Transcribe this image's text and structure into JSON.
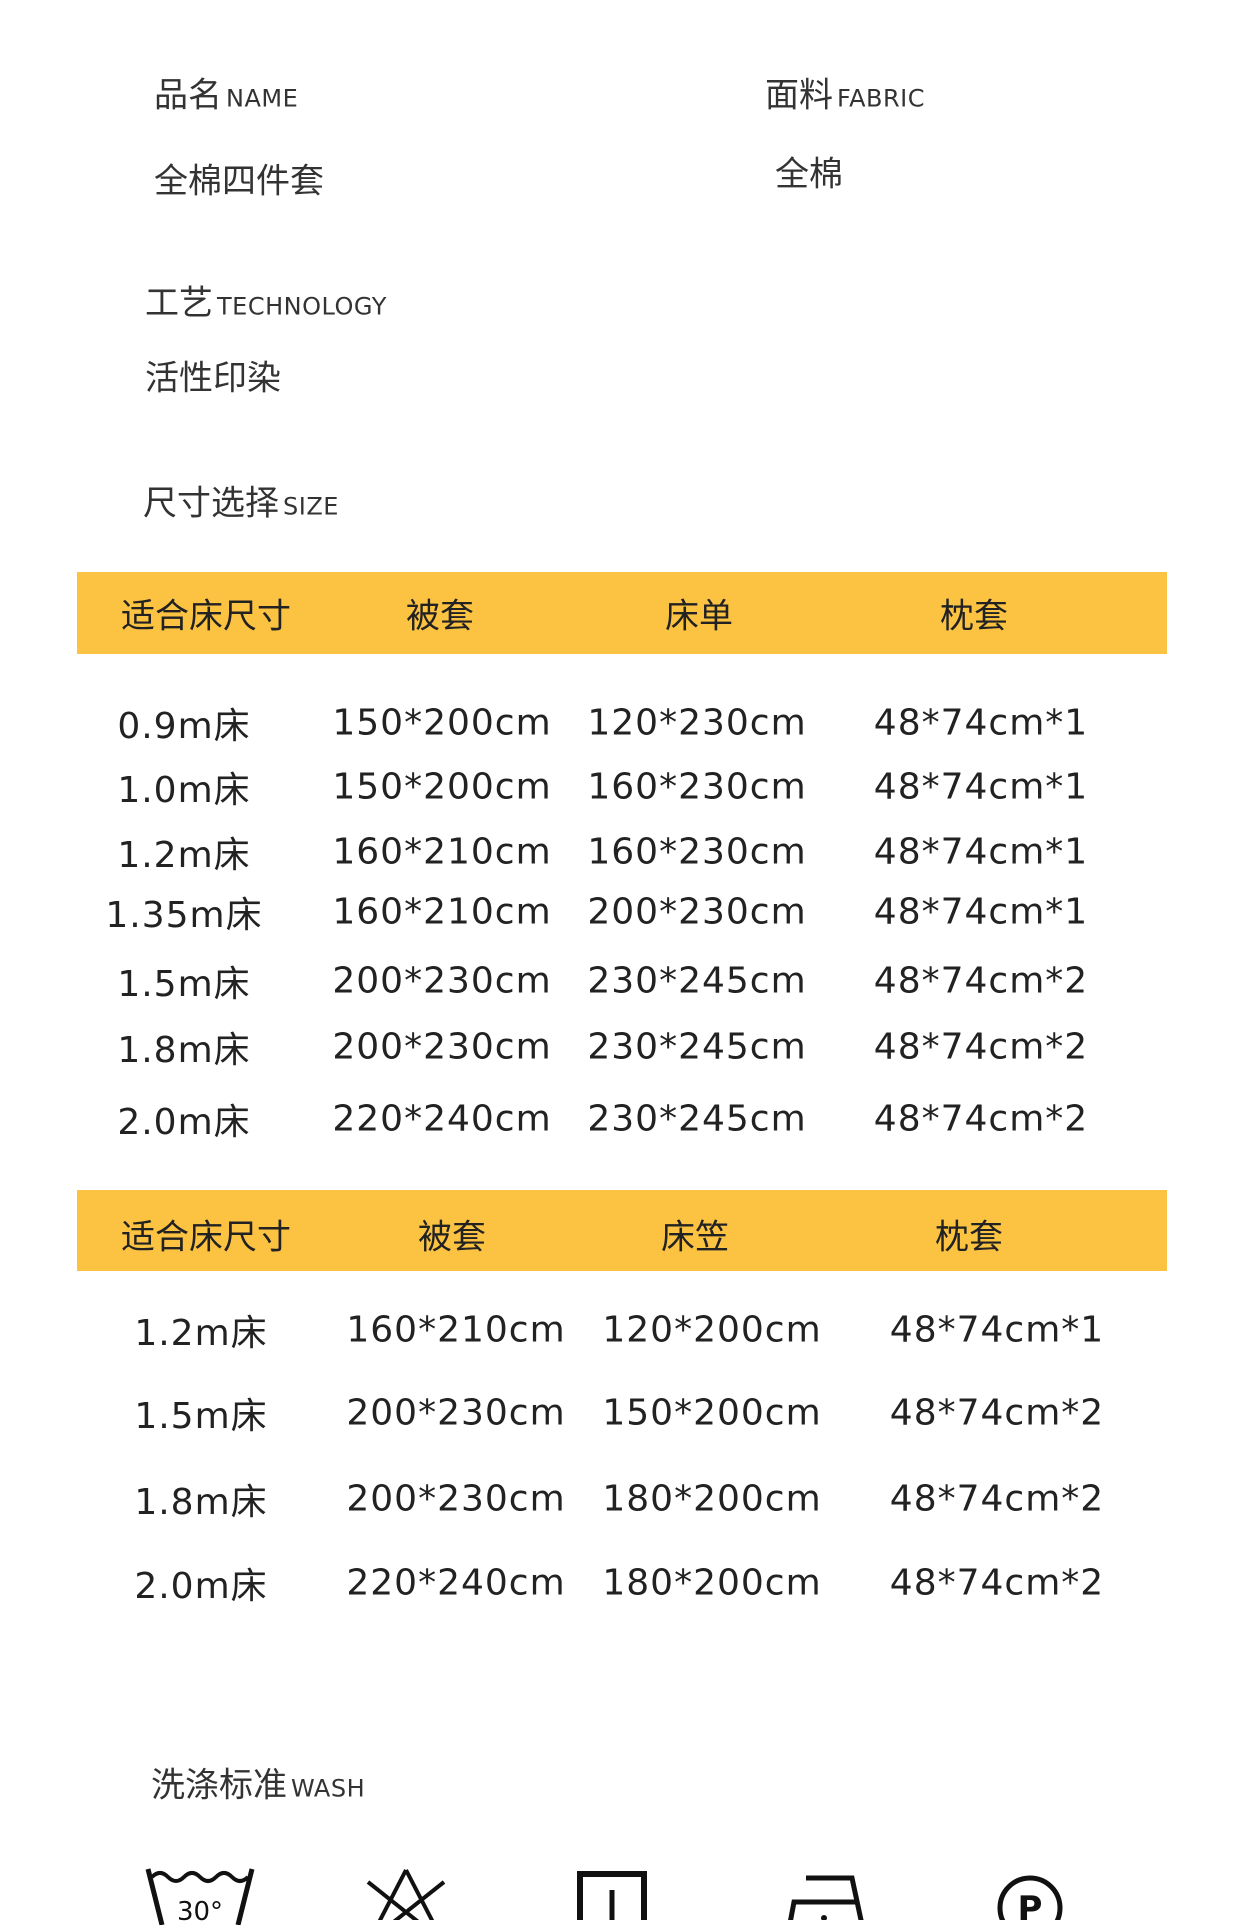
{
  "name": {
    "label_cn": "品名",
    "label_en": "NAME",
    "value": "全棉四件套"
  },
  "fabric": {
    "label_cn": "面料",
    "label_en": "FABRIC",
    "value": "全棉"
  },
  "technology": {
    "label_cn": "工艺",
    "label_en": "TECHNOLOGY",
    "value": "活性印染"
  },
  "size": {
    "label_cn": "尺寸选择",
    "label_en": "SIZE"
  },
  "accent_color": "#fcc343",
  "table1": {
    "headers": [
      "适合床尺寸",
      "被套",
      "床单",
      "枕套"
    ],
    "rows": [
      [
        "0.9m床",
        "150*200cm",
        "120*230cm",
        "48*74cm*1"
      ],
      [
        "1.0m床",
        "150*200cm",
        "160*230cm",
        "48*74cm*1"
      ],
      [
        "1.2m床",
        "160*210cm",
        "160*230cm",
        "48*74cm*1"
      ],
      [
        "1.35m床",
        "160*210cm",
        "200*230cm",
        "48*74cm*1"
      ],
      [
        "1.5m床",
        "200*230cm",
        "230*245cm",
        "48*74cm*2"
      ],
      [
        "1.8m床",
        "200*230cm",
        "230*245cm",
        "48*74cm*2"
      ],
      [
        "2.0m床",
        "220*240cm",
        "230*245cm",
        "48*74cm*2"
      ]
    ]
  },
  "table2": {
    "headers": [
      "适合床尺寸",
      "被套",
      "床笠",
      "枕套"
    ],
    "rows": [
      [
        "1.2m床",
        "160*210cm",
        "120*200cm",
        "48*74cm*1"
      ],
      [
        "1.5m床",
        "200*230cm",
        "150*200cm",
        "48*74cm*2"
      ],
      [
        "1.8m床",
        "200*230cm",
        "180*200cm",
        "48*74cm*2"
      ],
      [
        "2.0m床",
        "220*240cm",
        "180*200cm",
        "48*74cm*2"
      ]
    ]
  },
  "wash": {
    "label_cn": "洗涤标准",
    "label_en": "WASH",
    "icons": [
      {
        "name": "wash-30-icon",
        "text": "30°"
      },
      {
        "name": "no-bleach-icon"
      },
      {
        "name": "drip-dry-icon"
      },
      {
        "name": "iron-icon"
      },
      {
        "name": "dry-clean-p-icon",
        "text": "P"
      }
    ]
  }
}
